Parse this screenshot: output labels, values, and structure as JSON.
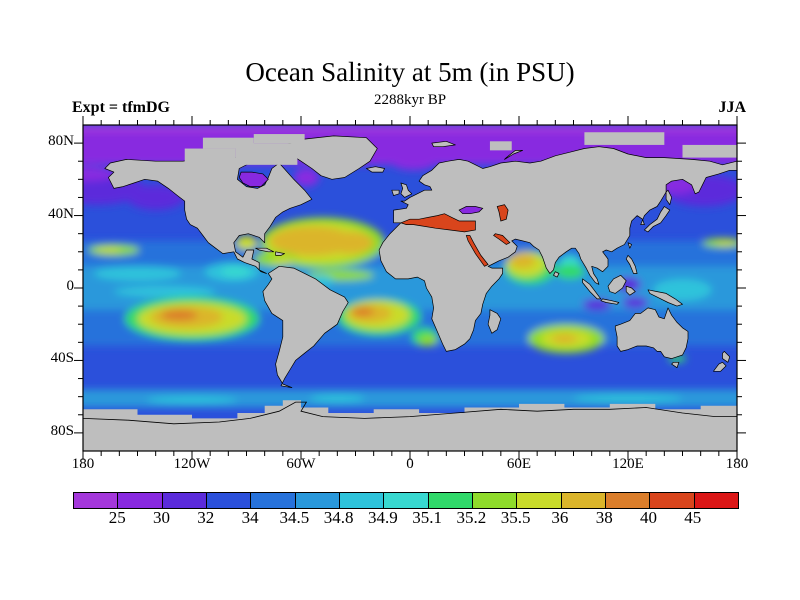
{
  "figure": {
    "title": "Ocean Salinity at 5m (in PSU)",
    "subtitle": "2288kyr BP",
    "experiment_label": "Expt = tfmDG",
    "season_label": "JJA"
  },
  "chart_data": {
    "type": "heatmap",
    "subtype": "filled_contour_world_map",
    "projection": "equirectangular",
    "title": "Ocean Salinity at 5m (in PSU)",
    "subtitle": "2288kyr BP",
    "annotations": {
      "top_left": "Expt = tfmDG",
      "top_right": "JJA"
    },
    "variable": "Ocean Salinity",
    "depth": "5m",
    "units": "PSU",
    "x_axis": {
      "label": "longitude",
      "range": [
        -180,
        180
      ],
      "minor_tick_step_deg": 10,
      "ticks": [
        {
          "label": "180",
          "lon": -180
        },
        {
          "label": "120W",
          "lon": -120
        },
        {
          "label": "60W",
          "lon": -60
        },
        {
          "label": "0",
          "lon": 0
        },
        {
          "label": "60E",
          "lon": 60
        },
        {
          "label": "120E",
          "lon": 120
        },
        {
          "label": "180",
          "lon": 180
        }
      ]
    },
    "y_axis": {
      "label": "latitude",
      "range": [
        -90,
        90
      ],
      "minor_tick_step_deg": 10,
      "ticks": [
        {
          "label": "80N",
          "lat": 80
        },
        {
          "label": "40N",
          "lat": 40
        },
        {
          "label": "0",
          "lat": 0
        },
        {
          "label": "40S",
          "lat": -40
        },
        {
          "label": "80S",
          "lat": -80
        }
      ]
    },
    "colorbar": {
      "n_segments": 15,
      "boundary_labels": [
        "25",
        "30",
        "32",
        "34",
        "34.5",
        "34.8",
        "34.9",
        "35.1",
        "35.2",
        "35.5",
        "36",
        "38",
        "40",
        "45"
      ],
      "colors": [
        "#A437DB",
        "#8829E0",
        "#5B2BDB",
        "#2B50DB",
        "#2772DB",
        "#2998DB",
        "#2DC3DB",
        "#38D8D0",
        "#30D96A",
        "#8FDB2B",
        "#C9DB2B",
        "#DBB52B",
        "#DB7E2B",
        "#D9451C",
        "#DB1616"
      ]
    },
    "levels_legend": [
      "<25",
      "25-30",
      "30-32",
      "32-34",
      "34-34.5",
      "34.5-34.8",
      "34.8-34.9",
      "34.9-35.1",
      "35.1-35.2",
      "35.2-35.5",
      "35.5-36",
      "36-38",
      "38-40",
      "40-45",
      ">45"
    ],
    "land_color": "#bebebe",
    "coastline_color": "#000000",
    "background_color": "#ffffff",
    "ocean_base_level": 3,
    "bands": [
      {
        "name": "tropical-band",
        "lat": [
          -32,
          26
        ],
        "level": 4,
        "value": "34-34.5"
      },
      {
        "name": "equatorial-band",
        "lat": [
          -12,
          12
        ],
        "level": 5,
        "value": "34.5-34.8"
      },
      {
        "name": "subantarctic-band",
        "lat": [
          -66,
          -56
        ],
        "level": 5,
        "value": "34.5-34.8"
      },
      {
        "name": "arctic-band",
        "lat": [
          68,
          90
        ],
        "level": 1,
        "value": "25-30"
      },
      {
        "name": "arctic-top-strip",
        "lat": [
          86,
          90
        ],
        "level": 0,
        "value": "<25"
      }
    ],
    "features": [
      {
        "name": "npac-subarctic-west",
        "lon": 162,
        "lat": 54,
        "rx": 22,
        "ry": 9,
        "level": 2,
        "value": "30-32"
      },
      {
        "name": "npac-subarctic-east",
        "lon": -172,
        "lat": 55,
        "rx": 26,
        "ry": 9,
        "level": 2,
        "value": "30-32"
      },
      {
        "name": "npac-subarctic-ne",
        "lon": -140,
        "lat": 50,
        "rx": 16,
        "ry": 7,
        "level": 2,
        "value": "30-32"
      },
      {
        "name": "bering-sea-fresh",
        "lon": -178,
        "lat": 63,
        "rx": 16,
        "ry": 4,
        "level": 1,
        "value": "25-30"
      },
      {
        "name": "okhotsk-fresh",
        "lon": 147,
        "lat": 57,
        "rx": 11,
        "ry": 5,
        "level": 1,
        "value": "25-30"
      },
      {
        "name": "labrador-fresh",
        "lon": -57,
        "lat": 61,
        "rx": 7,
        "ry": 5,
        "level": 1,
        "value": "25-30"
      },
      {
        "name": "norwegian-fresh",
        "lon": 2,
        "lat": 69,
        "rx": 12,
        "ry": 4,
        "level": 1,
        "value": "25-30"
      },
      {
        "name": "baltic-fresh",
        "lon": 19,
        "lat": 57,
        "rx": 5,
        "ry": 3,
        "level": 1,
        "value": "25-30"
      },
      {
        "name": "natl-gyre-fringe",
        "lon": -48,
        "lat": 25,
        "rx": 34,
        "ry": 14,
        "level": 9,
        "value": "35.2-35.5"
      },
      {
        "name": "natl-gyre-yellow",
        "lon": -50,
        "lat": 25,
        "rx": 29,
        "ry": 11,
        "level": 10,
        "value": "35.5-36"
      },
      {
        "name": "natl-gyre-gold",
        "lon": -54,
        "lat": 26,
        "rx": 23,
        "ry": 8,
        "level": 11,
        "value": "36-38"
      },
      {
        "name": "natl-gyre-gold-east",
        "lon": -33,
        "lat": 25,
        "rx": 13,
        "ry": 6,
        "level": 11,
        "value": "36-38"
      },
      {
        "name": "gulf-of-mexico",
        "lon": -90,
        "lat": 25,
        "rx": 6,
        "ry": 4,
        "level": 10,
        "value": "35.5-36"
      },
      {
        "name": "caribbean",
        "lon": -74,
        "lat": 16,
        "rx": 12,
        "ry": 4,
        "level": 9,
        "value": "35.2-35.5"
      },
      {
        "name": "caribbean-core",
        "lon": -70,
        "lat": 15,
        "rx": 7,
        "ry": 2,
        "level": 10,
        "value": "35.5-36"
      },
      {
        "name": "eq-atlantic-band",
        "lon": -38,
        "lat": 7,
        "rx": 18,
        "ry": 3,
        "level": 9,
        "value": "35.2-35.5"
      },
      {
        "name": "amazon-plume",
        "lon": -49,
        "lat": 4,
        "rx": 7,
        "ry": 3,
        "level": 6,
        "value": "34.8-34.9"
      },
      {
        "name": "satl-gyre-green",
        "lon": -17,
        "lat": -16,
        "rx": 23,
        "ry": 10,
        "level": 8,
        "value": "35.1-35.2"
      },
      {
        "name": "satl-gyre-yellow",
        "lon": -18,
        "lat": -15,
        "rx": 18,
        "ry": 8,
        "level": 10,
        "value": "35.5-36"
      },
      {
        "name": "satl-gyre-gold",
        "lon": -22,
        "lat": -14,
        "rx": 12,
        "ry": 5,
        "level": 11,
        "value": "36-38"
      },
      {
        "name": "satl-gyre-orange",
        "lon": -26,
        "lat": -13,
        "rx": 6,
        "ry": 2.5,
        "level": 12,
        "value": "38-40"
      },
      {
        "name": "spac-gyre-green",
        "lon": -120,
        "lat": -17,
        "rx": 37,
        "ry": 12,
        "level": 8,
        "value": "35.1-35.2"
      },
      {
        "name": "spac-gyre-yellow",
        "lon": -120,
        "lat": -17,
        "rx": 30,
        "ry": 9,
        "level": 10,
        "value": "35.5-36"
      },
      {
        "name": "spac-gyre-gold",
        "lon": -123,
        "lat": -16,
        "rx": 20,
        "ry": 6,
        "level": 11,
        "value": "36-38"
      },
      {
        "name": "spac-gyre-orange",
        "lon": -127,
        "lat": -15,
        "rx": 10,
        "ry": 3,
        "level": 12,
        "value": "38-40"
      },
      {
        "name": "sind-gyre-green",
        "lon": 86,
        "lat": -28,
        "rx": 21,
        "ry": 8,
        "level": 9,
        "value": "35.2-35.5"
      },
      {
        "name": "sind-gyre-yellow",
        "lon": 86,
        "lat": -28,
        "rx": 14,
        "ry": 5,
        "level": 10,
        "value": "35.5-36"
      },
      {
        "name": "sind-gyre-core",
        "lon": 85,
        "lat": -28,
        "rx": 7,
        "ry": 2.5,
        "level": 11,
        "value": "36-38"
      },
      {
        "name": "benguela-green",
        "lon": 8,
        "lat": -27,
        "rx": 7,
        "ry": 5,
        "level": 8,
        "value": "35.1-35.2"
      },
      {
        "name": "benguela-core",
        "lon": 10,
        "lat": -29,
        "rx": 5,
        "ry": 3,
        "level": 9,
        "value": "35.2-35.5"
      },
      {
        "name": "hawaii-streak",
        "lon": -163,
        "lat": 21,
        "rx": 14,
        "ry": 3,
        "level": 9,
        "value": "35.2-35.5"
      },
      {
        "name": "hawaii-streak-core",
        "lon": -166,
        "lat": 21,
        "rx": 7,
        "ry": 1.5,
        "level": 10,
        "value": "35.5-36"
      },
      {
        "name": "wpac-streak",
        "lon": 172,
        "lat": 25,
        "rx": 11,
        "ry": 2.5,
        "level": 9,
        "value": "35.2-35.5"
      },
      {
        "name": "wpac-streak-core",
        "lon": 174,
        "lat": 25,
        "rx": 6,
        "ry": 1.5,
        "level": 10,
        "value": "35.5-36"
      },
      {
        "name": "arabian-sea-outer",
        "lon": 66,
        "lat": 11,
        "rx": 14,
        "ry": 9,
        "level": 8,
        "value": "35.1-35.2"
      },
      {
        "name": "arabian-sea-yellow",
        "lon": 64,
        "lat": 13,
        "rx": 11,
        "ry": 7,
        "level": 10,
        "value": "35.5-36"
      },
      {
        "name": "arabian-sea-gold",
        "lon": 62,
        "lat": 15,
        "rx": 7,
        "ry": 4,
        "level": 11,
        "value": "36-38"
      },
      {
        "name": "bay-of-bengal",
        "lon": 88,
        "lat": 13,
        "rx": 6,
        "ry": 5,
        "level": 7,
        "value": "34.9-35.1"
      },
      {
        "name": "bay-of-bengal-green",
        "lon": 88,
        "lat": 9,
        "rx": 8,
        "ry": 4,
        "level": 8,
        "value": "35.1-35.2"
      },
      {
        "name": "epac-fresh-pool",
        "lon": -98,
        "lat": 9,
        "rx": 15,
        "ry": 5,
        "level": 6,
        "value": "34.8-34.9"
      },
      {
        "name": "epac-fresh-core",
        "lon": -96,
        "lat": 9,
        "rx": 8,
        "ry": 3,
        "level": 7,
        "value": "34.9-35.1"
      },
      {
        "name": "eqpac-cyan-1",
        "lon": -135,
        "lat": -2,
        "rx": 28,
        "ry": 3,
        "level": 6,
        "value": "34.8-34.9"
      },
      {
        "name": "eqpac-cyan-2",
        "lon": -150,
        "lat": 8,
        "rx": 24,
        "ry": 4,
        "level": 6,
        "value": "34.8-34.9"
      },
      {
        "name": "wpac-warm-pool",
        "lon": 150,
        "lat": -1,
        "rx": 16,
        "ry": 6,
        "level": 6,
        "value": "34.8-34.9"
      },
      {
        "name": "indonesian-fresh-1",
        "lon": 103,
        "lat": -9,
        "rx": 8,
        "ry": 3,
        "level": 2,
        "value": "30-32"
      },
      {
        "name": "indonesian-fresh-2",
        "lon": 124,
        "lat": -8,
        "rx": 7,
        "ry": 3,
        "level": 2,
        "value": "30-32"
      },
      {
        "name": "celebes-fresh",
        "lon": 120,
        "lat": 2,
        "rx": 7,
        "ry": 4,
        "level": 2,
        "value": "30-32"
      },
      {
        "name": "tasman-green",
        "lon": 147,
        "lat": -39,
        "rx": 5,
        "ry": 2,
        "level": 8,
        "value": "35.1-35.2"
      },
      {
        "name": "southern-cyan-1",
        "lon": -120,
        "lat": -62,
        "rx": 25,
        "ry": 2,
        "level": 6,
        "value": "34.8-34.9"
      },
      {
        "name": "southern-cyan-2",
        "lon": -40,
        "lat": -61,
        "rx": 15,
        "ry": 2,
        "level": 6,
        "value": "34.8-34.9"
      },
      {
        "name": "southern-cyan-3",
        "lon": 120,
        "lat": -61,
        "rx": 30,
        "ry": 2,
        "level": 6,
        "value": "34.8-34.9"
      }
    ],
    "seas": [
      {
        "name": "mediterranean-sea",
        "level": 13,
        "value": "40-45"
      },
      {
        "name": "black-sea",
        "level": 1,
        "value": "25-30"
      },
      {
        "name": "caspian-sea",
        "level": 13,
        "value": "40-45"
      },
      {
        "name": "red-sea",
        "level": 13,
        "value": "40-45"
      },
      {
        "name": "persian-gulf",
        "level": 13,
        "value": "40-45"
      },
      {
        "name": "hudson-bay",
        "level": 1,
        "value": "25-30"
      }
    ]
  }
}
